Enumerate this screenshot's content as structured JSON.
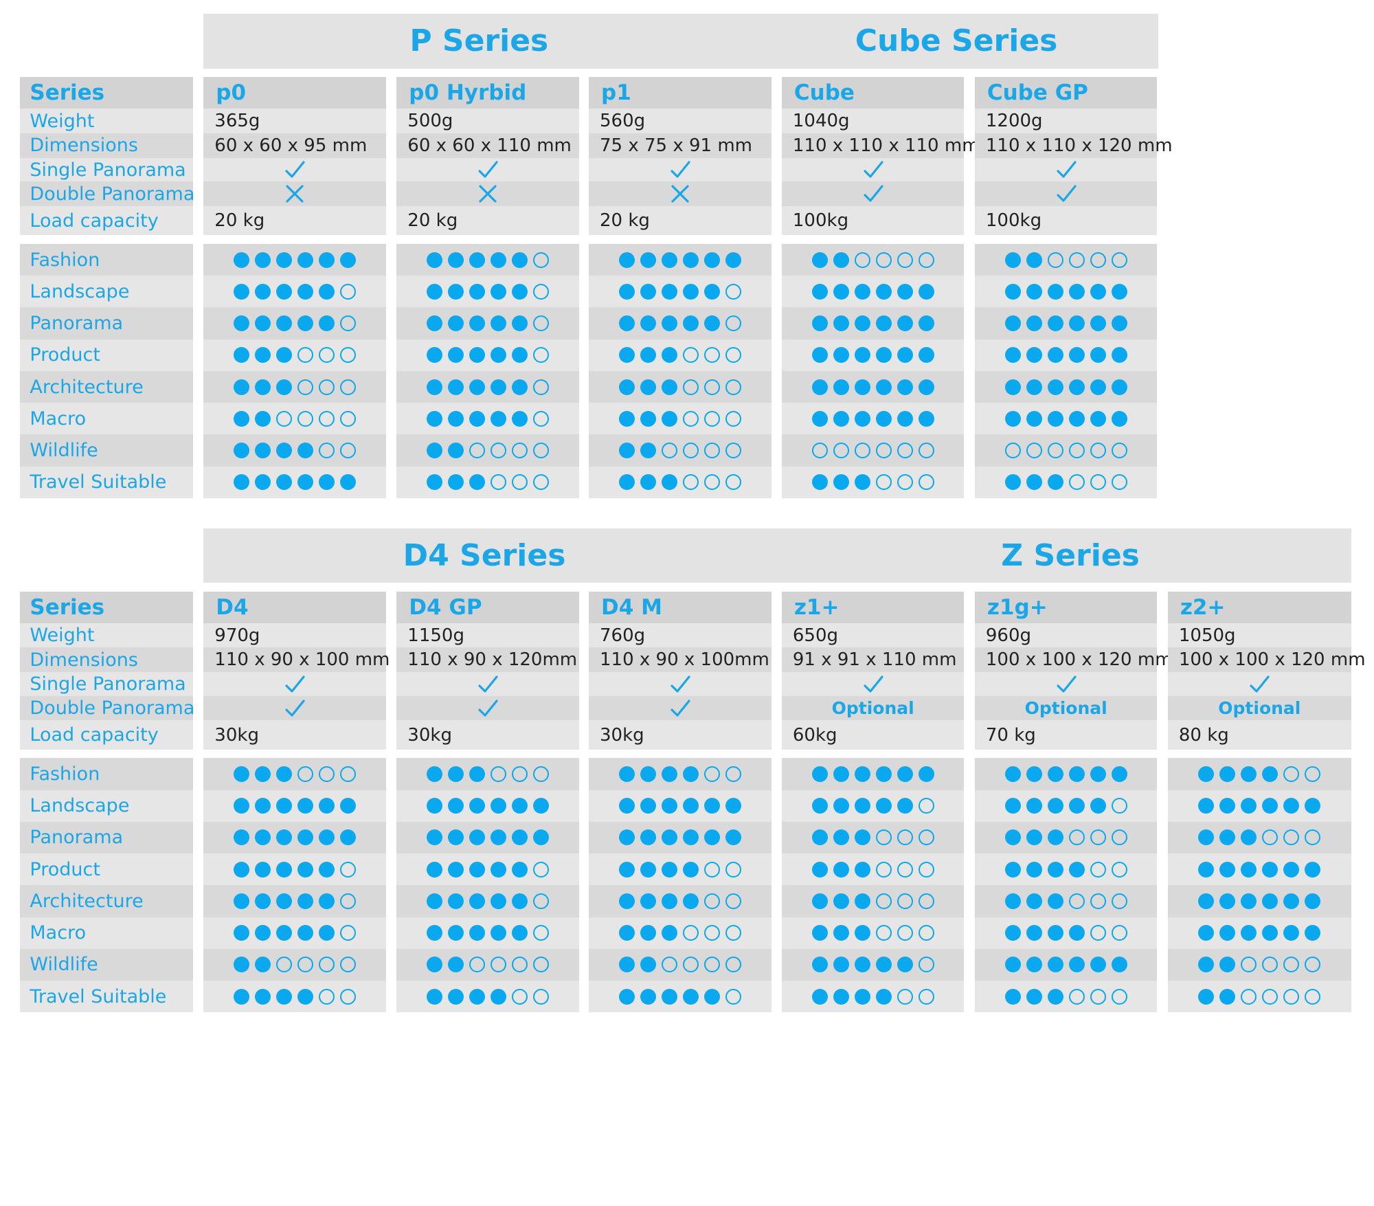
{
  "colors": {
    "accent": "#1ba6e8",
    "dot": "#09a8ef",
    "text": "#222222",
    "row_light": "#e6e6e6",
    "row_dark": "#d9d9d9"
  },
  "labels": {
    "header": "Series",
    "specs": [
      "Weight",
      "Dimensions",
      "Single Panorama",
      "Double Panorama",
      "Load capacity"
    ],
    "uses": [
      "Fashion",
      "Landscape",
      "Panorama",
      "Product",
      "Architecture",
      "Macro",
      "Wildlife",
      "Travel Suitable"
    ]
  },
  "sections": [
    {
      "series": [
        "P Series",
        "Cube Series"
      ],
      "products": [
        {
          "name": "p0",
          "weight": "365g",
          "dimensions": "60 x 60 x 95 mm",
          "single": "check",
          "double": "cross",
          "load": "20 kg",
          "ratings": [
            6,
            5,
            5,
            3,
            3,
            2,
            4,
            6
          ]
        },
        {
          "name": "p0 Hyrbid",
          "weight": "500g",
          "dimensions": "60 x 60 x 110 mm",
          "single": "check",
          "double": "cross",
          "load": "20 kg",
          "ratings": [
            5,
            5,
            5,
            5,
            5,
            5,
            2,
            3
          ]
        },
        {
          "name": "p1",
          "weight": "560g",
          "dimensions": "75 x 75 x 91 mm",
          "single": "check",
          "double": "cross",
          "load": "20 kg",
          "ratings": [
            6,
            5,
            5,
            3,
            3,
            3,
            2,
            3
          ]
        },
        {
          "name": "Cube",
          "weight": "1040g",
          "dimensions": "110 x 110 x 110 mm",
          "single": "check",
          "double": "check",
          "load": "100kg",
          "ratings": [
            2,
            6,
            6,
            6,
            6,
            6,
            0,
            3
          ]
        },
        {
          "name": "Cube GP",
          "weight": "1200g",
          "dimensions": "110 x 110 x 120 mm",
          "single": "check",
          "double": "check",
          "load": "100kg",
          "ratings": [
            2,
            6,
            6,
            6,
            6,
            6,
            0,
            3
          ]
        }
      ]
    },
    {
      "series": [
        "D4 Series",
        "Z Series"
      ],
      "products": [
        {
          "name": "D4",
          "weight": "970g",
          "dimensions": "110 x 90 x 100 mm",
          "single": "check",
          "double": "check",
          "load": "30kg",
          "ratings": [
            3,
            6,
            6,
            5,
            5,
            5,
            2,
            4
          ]
        },
        {
          "name": "D4 GP",
          "weight": "1150g",
          "dimensions": "110 x 90  x 120mm",
          "single": "check",
          "double": "check",
          "load": "30kg",
          "ratings": [
            3,
            6,
            6,
            5,
            5,
            5,
            2,
            4
          ]
        },
        {
          "name": "D4 M",
          "weight": "760g",
          "dimensions": "110 x 90 x 100mm",
          "single": "check",
          "double": "check",
          "load": "30kg",
          "ratings": [
            4,
            6,
            6,
            4,
            4,
            3,
            2,
            5
          ]
        },
        {
          "name": "z1+",
          "weight": "650g",
          "dimensions": "91 x 91 x 110 mm",
          "single": "check",
          "double": "Optional",
          "load": "60kg",
          "ratings": [
            6,
            5,
            3,
            3,
            3,
            3,
            5,
            4
          ]
        },
        {
          "name": "z1g+",
          "weight": "960g",
          "dimensions": "100 x 100 x 120 mm",
          "single": "check",
          "double": "Optional",
          "load": "70 kg",
          "ratings": [
            6,
            5,
            3,
            4,
            3,
            4,
            6,
            3
          ]
        },
        {
          "name": "z2+",
          "weight": "1050g",
          "dimensions": "100 x 100 x 120 mm",
          "single": "check",
          "double": "Optional",
          "load": "80 kg",
          "ratings": [
            4,
            6,
            3,
            6,
            6,
            6,
            2,
            2
          ]
        }
      ]
    }
  ]
}
